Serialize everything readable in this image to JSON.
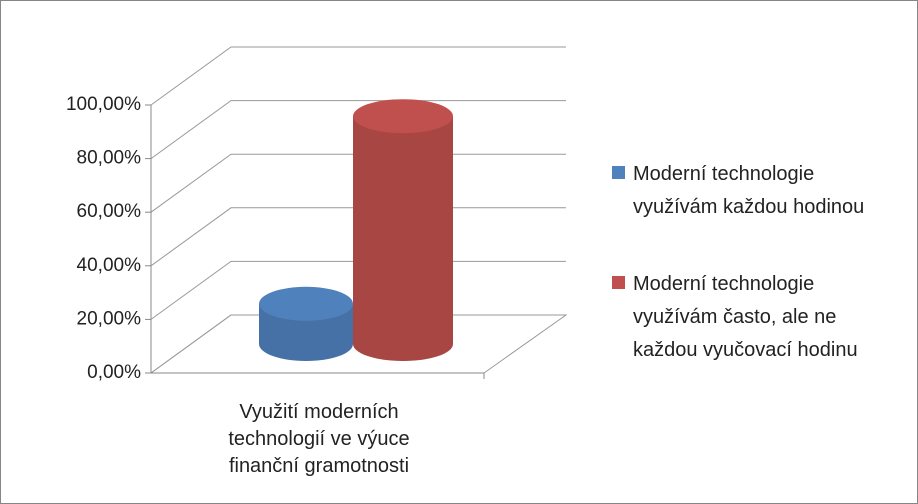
{
  "chart_data": {
    "type": "bar3d",
    "categories": [
      "Využití moderních technologií ve výuce finanční gramotnosti"
    ],
    "series": [
      {
        "name": "Moderní technologie využívám každou hodinou",
        "color": "#4f81bd",
        "values": [
          15
        ]
      },
      {
        "name": "Moderní technologie využívám často, ale ne každou vyučovací hodinu",
        "color": "#c0504d",
        "values": [
          85
        ]
      }
    ],
    "ylim": [
      0,
      100
    ],
    "yticks": [
      {
        "value": 0,
        "label": "0,00%"
      },
      {
        "value": 20,
        "label": "20,00%"
      },
      {
        "value": 40,
        "label": "40,00%"
      },
      {
        "value": 60,
        "label": "60,00%"
      },
      {
        "value": 80,
        "label": "80,00%"
      },
      {
        "value": 100,
        "label": "100,00%"
      }
    ],
    "grid": true,
    "legend": "right"
  }
}
